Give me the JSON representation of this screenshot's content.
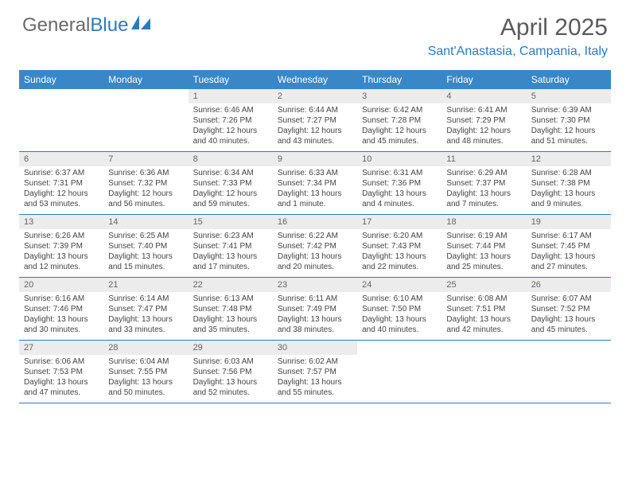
{
  "logo": {
    "text1": "General",
    "text2": "Blue"
  },
  "title": "April 2025",
  "location": "Sant'Anastasia, Campania, Italy",
  "colors": {
    "header_bg": "#3a87c7",
    "header_text": "#ffffff",
    "accent": "#2b7bbf",
    "daynum_bg": "#ececec",
    "body_text": "#444444",
    "title_text": "#5a5a5a"
  },
  "day_names": [
    "Sunday",
    "Monday",
    "Tuesday",
    "Wednesday",
    "Thursday",
    "Friday",
    "Saturday"
  ],
  "weeks": [
    [
      {
        "n": "",
        "sr": "",
        "ss": "",
        "dl": ""
      },
      {
        "n": "",
        "sr": "",
        "ss": "",
        "dl": ""
      },
      {
        "n": "1",
        "sr": "Sunrise: 6:46 AM",
        "ss": "Sunset: 7:26 PM",
        "dl": "Daylight: 12 hours and 40 minutes."
      },
      {
        "n": "2",
        "sr": "Sunrise: 6:44 AM",
        "ss": "Sunset: 7:27 PM",
        "dl": "Daylight: 12 hours and 43 minutes."
      },
      {
        "n": "3",
        "sr": "Sunrise: 6:42 AM",
        "ss": "Sunset: 7:28 PM",
        "dl": "Daylight: 12 hours and 45 minutes."
      },
      {
        "n": "4",
        "sr": "Sunrise: 6:41 AM",
        "ss": "Sunset: 7:29 PM",
        "dl": "Daylight: 12 hours and 48 minutes."
      },
      {
        "n": "5",
        "sr": "Sunrise: 6:39 AM",
        "ss": "Sunset: 7:30 PM",
        "dl": "Daylight: 12 hours and 51 minutes."
      }
    ],
    [
      {
        "n": "6",
        "sr": "Sunrise: 6:37 AM",
        "ss": "Sunset: 7:31 PM",
        "dl": "Daylight: 12 hours and 53 minutes."
      },
      {
        "n": "7",
        "sr": "Sunrise: 6:36 AM",
        "ss": "Sunset: 7:32 PM",
        "dl": "Daylight: 12 hours and 56 minutes."
      },
      {
        "n": "8",
        "sr": "Sunrise: 6:34 AM",
        "ss": "Sunset: 7:33 PM",
        "dl": "Daylight: 12 hours and 59 minutes."
      },
      {
        "n": "9",
        "sr": "Sunrise: 6:33 AM",
        "ss": "Sunset: 7:34 PM",
        "dl": "Daylight: 13 hours and 1 minute."
      },
      {
        "n": "10",
        "sr": "Sunrise: 6:31 AM",
        "ss": "Sunset: 7:36 PM",
        "dl": "Daylight: 13 hours and 4 minutes."
      },
      {
        "n": "11",
        "sr": "Sunrise: 6:29 AM",
        "ss": "Sunset: 7:37 PM",
        "dl": "Daylight: 13 hours and 7 minutes."
      },
      {
        "n": "12",
        "sr": "Sunrise: 6:28 AM",
        "ss": "Sunset: 7:38 PM",
        "dl": "Daylight: 13 hours and 9 minutes."
      }
    ],
    [
      {
        "n": "13",
        "sr": "Sunrise: 6:26 AM",
        "ss": "Sunset: 7:39 PM",
        "dl": "Daylight: 13 hours and 12 minutes."
      },
      {
        "n": "14",
        "sr": "Sunrise: 6:25 AM",
        "ss": "Sunset: 7:40 PM",
        "dl": "Daylight: 13 hours and 15 minutes."
      },
      {
        "n": "15",
        "sr": "Sunrise: 6:23 AM",
        "ss": "Sunset: 7:41 PM",
        "dl": "Daylight: 13 hours and 17 minutes."
      },
      {
        "n": "16",
        "sr": "Sunrise: 6:22 AM",
        "ss": "Sunset: 7:42 PM",
        "dl": "Daylight: 13 hours and 20 minutes."
      },
      {
        "n": "17",
        "sr": "Sunrise: 6:20 AM",
        "ss": "Sunset: 7:43 PM",
        "dl": "Daylight: 13 hours and 22 minutes."
      },
      {
        "n": "18",
        "sr": "Sunrise: 6:19 AM",
        "ss": "Sunset: 7:44 PM",
        "dl": "Daylight: 13 hours and 25 minutes."
      },
      {
        "n": "19",
        "sr": "Sunrise: 6:17 AM",
        "ss": "Sunset: 7:45 PM",
        "dl": "Daylight: 13 hours and 27 minutes."
      }
    ],
    [
      {
        "n": "20",
        "sr": "Sunrise: 6:16 AM",
        "ss": "Sunset: 7:46 PM",
        "dl": "Daylight: 13 hours and 30 minutes."
      },
      {
        "n": "21",
        "sr": "Sunrise: 6:14 AM",
        "ss": "Sunset: 7:47 PM",
        "dl": "Daylight: 13 hours and 33 minutes."
      },
      {
        "n": "22",
        "sr": "Sunrise: 6:13 AM",
        "ss": "Sunset: 7:48 PM",
        "dl": "Daylight: 13 hours and 35 minutes."
      },
      {
        "n": "23",
        "sr": "Sunrise: 6:11 AM",
        "ss": "Sunset: 7:49 PM",
        "dl": "Daylight: 13 hours and 38 minutes."
      },
      {
        "n": "24",
        "sr": "Sunrise: 6:10 AM",
        "ss": "Sunset: 7:50 PM",
        "dl": "Daylight: 13 hours and 40 minutes."
      },
      {
        "n": "25",
        "sr": "Sunrise: 6:08 AM",
        "ss": "Sunset: 7:51 PM",
        "dl": "Daylight: 13 hours and 42 minutes."
      },
      {
        "n": "26",
        "sr": "Sunrise: 6:07 AM",
        "ss": "Sunset: 7:52 PM",
        "dl": "Daylight: 13 hours and 45 minutes."
      }
    ],
    [
      {
        "n": "27",
        "sr": "Sunrise: 6:06 AM",
        "ss": "Sunset: 7:53 PM",
        "dl": "Daylight: 13 hours and 47 minutes."
      },
      {
        "n": "28",
        "sr": "Sunrise: 6:04 AM",
        "ss": "Sunset: 7:55 PM",
        "dl": "Daylight: 13 hours and 50 minutes."
      },
      {
        "n": "29",
        "sr": "Sunrise: 6:03 AM",
        "ss": "Sunset: 7:56 PM",
        "dl": "Daylight: 13 hours and 52 minutes."
      },
      {
        "n": "30",
        "sr": "Sunrise: 6:02 AM",
        "ss": "Sunset: 7:57 PM",
        "dl": "Daylight: 13 hours and 55 minutes."
      },
      {
        "n": "",
        "sr": "",
        "ss": "",
        "dl": ""
      },
      {
        "n": "",
        "sr": "",
        "ss": "",
        "dl": ""
      },
      {
        "n": "",
        "sr": "",
        "ss": "",
        "dl": ""
      }
    ]
  ]
}
